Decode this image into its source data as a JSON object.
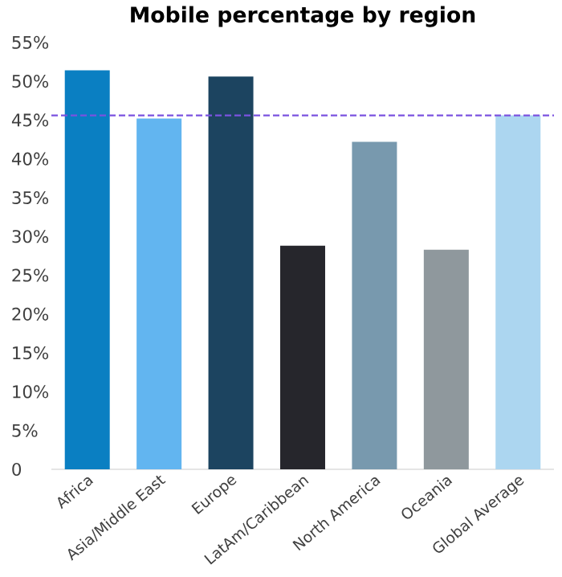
{
  "chart_data": {
    "type": "bar",
    "title": "Mobile percentage by region",
    "categories": [
      "Africa",
      "Asia/Middle East",
      "Europe",
      "LatAm/Caribbean",
      "North America",
      "Oceania",
      "Global Average"
    ],
    "values": [
      51.4,
      45.2,
      50.6,
      28.8,
      42.2,
      28.3,
      45.6
    ],
    "colors": [
      "#0a7fc2",
      "#62b5f0",
      "#1c4460",
      "#26262c",
      "#7899ae",
      "#8f989d",
      "#acd6f0"
    ],
    "ylim": [
      0,
      55
    ],
    "yticks": [
      {
        "value": 0,
        "label": "0"
      },
      {
        "value": 5,
        "label": "5%"
      },
      {
        "value": 10,
        "label": "10%"
      },
      {
        "value": 15,
        "label": "15%"
      },
      {
        "value": 20,
        "label": "20%"
      },
      {
        "value": 25,
        "label": "25%"
      },
      {
        "value": 30,
        "label": "30%"
      },
      {
        "value": 35,
        "label": "35%"
      },
      {
        "value": 40,
        "label": "40%"
      },
      {
        "value": 45,
        "label": "45%"
      },
      {
        "value": 50,
        "label": "50%"
      },
      {
        "value": 55,
        "label": "55%"
      }
    ],
    "ref_lines": [
      {
        "axis": "y",
        "value": 45.6,
        "color": "#7b52e0",
        "line_style": "dashed"
      }
    ],
    "grid": false
  }
}
